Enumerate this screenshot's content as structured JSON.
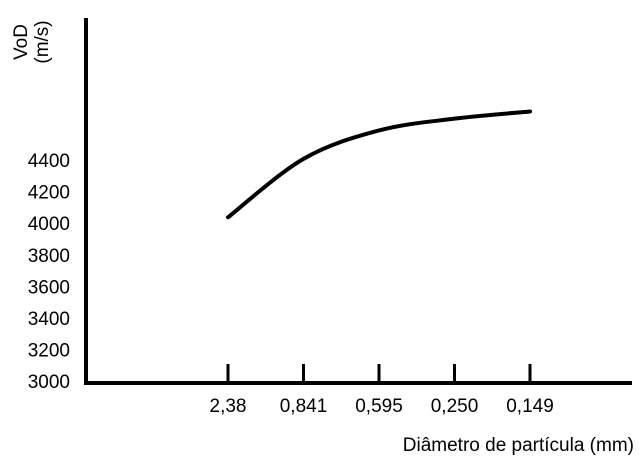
{
  "chart_data": {
    "type": "line",
    "ylabel": [
      "VoD",
      "(m/s)"
    ],
    "xlabel": "Diâmetro de partícula (mm)",
    "categories": [
      "2,38",
      "0,841",
      "0,595",
      "0,250",
      "0,149"
    ],
    "series": [
      {
        "name": "VoD",
        "color": "#000000",
        "values": [
          4050,
          4420,
          4600,
          4675,
          4720
        ]
      }
    ],
    "ylim": [
      3000,
      5300
    ],
    "yticks": [
      3000,
      3200,
      3400,
      3600,
      3800,
      4000,
      4200,
      4400
    ],
    "grid": false
  }
}
